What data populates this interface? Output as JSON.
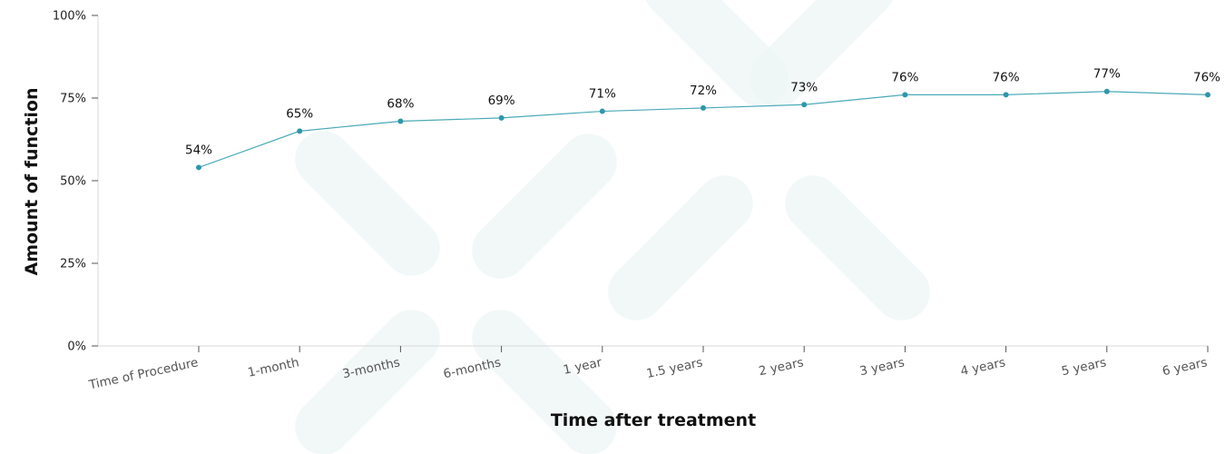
{
  "chart_data": {
    "type": "line",
    "categories": [
      "Time of Procedure",
      "1-month",
      "3-months",
      "6-months",
      "1 year",
      "1.5 years",
      "2 years",
      "3 years",
      "4 years",
      "5 years",
      "6 years"
    ],
    "values": [
      54,
      65,
      68,
      69,
      71,
      72,
      73,
      76,
      76,
      77,
      76
    ],
    "data_labels": [
      "54%",
      "65%",
      "68%",
      "69%",
      "71%",
      "72%",
      "73%",
      "76%",
      "76%",
      "77%",
      "76%"
    ],
    "y_ticks": [
      0,
      25,
      50,
      75,
      100
    ],
    "y_tick_labels": [
      "0%",
      "25%",
      "50%",
      "75%",
      "100%"
    ],
    "ylim": [
      0,
      100
    ],
    "xlabel": "Time after treatment",
    "ylabel": "Amount of function",
    "grid": false,
    "legend": "none",
    "colors": {
      "series": "#4aaab8",
      "marker": "#2f97aa"
    }
  }
}
